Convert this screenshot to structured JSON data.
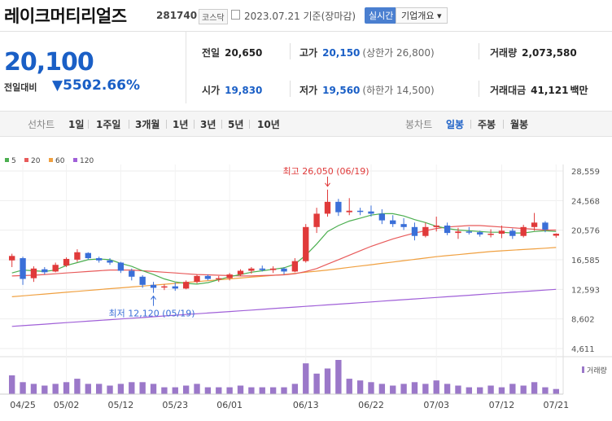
{
  "header": {
    "name": "레이크머티리얼즈",
    "code": "281740",
    "market": "코스닥",
    "date": "2023.07.21 기준(장마감)",
    "realtime_label": "실시간",
    "info_label": "기업개요 ▾"
  },
  "quote": {
    "price": "20,100",
    "change_label": "전일대비",
    "change": "▼550",
    "change_pct": "-2.66%",
    "prev_label": "전일",
    "prev": "20,650",
    "high_label": "고가",
    "high": "20,150",
    "upper_limit": "(상한가 26,800)",
    "volume_label": "거래량",
    "volume": "2,073,580",
    "open_label": "시가",
    "open": "19,830",
    "low_label": "저가",
    "low": "19,560",
    "lower_limit": "(하한가 14,500)",
    "value_label": "거래대금",
    "value": "41,121",
    "value_unit": "백만"
  },
  "tabs": {
    "line_chart": "선차트",
    "periods": [
      "1일",
      "1주일",
      "3개월",
      "1년",
      "3년",
      "5년",
      "10년"
    ],
    "candle_chart": "봉차트",
    "candle_periods": [
      "일봉",
      "주봉",
      "월봉"
    ]
  },
  "colors": {
    "up": "#e03a3a",
    "down": "#3a6fd8",
    "ma5": "#4caf50",
    "ma20": "#e85b5b",
    "ma60": "#f0a040",
    "ma120": "#a060d8"
  },
  "chart_data": {
    "type": "candlestick",
    "legend": [
      "5",
      "20",
      "60",
      "120"
    ],
    "ylim": [
      4611,
      28559
    ],
    "yticks": [
      "28,559",
      "24,568",
      "20,576",
      "16,585",
      "12,593",
      "8,602",
      "4,611"
    ],
    "xticks": [
      "04/25",
      "05/02",
      "05/12",
      "05/23",
      "06/01",
      "06/13",
      "06/22",
      "07/03",
      "07/12",
      "07/21"
    ],
    "xtick_index": [
      1,
      5,
      10,
      15,
      20,
      27,
      33,
      39,
      45,
      50
    ],
    "annotations": {
      "high": "최고 26,050 (06/19)",
      "low": "최저 12,120 (05/19)",
      "high_index": 29,
      "high_value": 26050,
      "low_index": 13,
      "low_value": 12120
    },
    "volume_label": "거래량",
    "ohlc": [
      [
        16500,
        17400,
        15600,
        17100
      ],
      [
        16800,
        17000,
        13200,
        14000
      ],
      [
        14100,
        15700,
        13600,
        15400
      ],
      [
        15300,
        15600,
        14600,
        14900
      ],
      [
        15000,
        16200,
        14900,
        15900
      ],
      [
        15800,
        16900,
        15600,
        16700
      ],
      [
        16600,
        18000,
        16300,
        17600
      ],
      [
        17500,
        17600,
        16600,
        16800
      ],
      [
        16800,
        17000,
        16200,
        16500
      ],
      [
        16500,
        16800,
        15900,
        16200
      ],
      [
        16200,
        16300,
        14800,
        15100
      ],
      [
        15100,
        15400,
        13800,
        14300
      ],
      [
        14300,
        14500,
        12800,
        13200
      ],
      [
        13200,
        13600,
        12120,
        12800
      ],
      [
        12900,
        13300,
        12500,
        13000
      ],
      [
        13000,
        13500,
        12400,
        12700
      ],
      [
        12700,
        13800,
        12600,
        13600
      ],
      [
        13600,
        14600,
        13400,
        14400
      ],
      [
        14400,
        14600,
        13800,
        14000
      ],
      [
        14000,
        14400,
        13600,
        14100
      ],
      [
        14100,
        14800,
        13800,
        14600
      ],
      [
        14600,
        15300,
        14400,
        15100
      ],
      [
        15100,
        15600,
        14700,
        15400
      ],
      [
        15400,
        15800,
        15000,
        15200
      ],
      [
        15200,
        15700,
        14800,
        15400
      ],
      [
        15400,
        15600,
        14600,
        15000
      ],
      [
        15000,
        16800,
        14900,
        16400
      ],
      [
        16400,
        21400,
        16200,
        21000
      ],
      [
        21000,
        23600,
        20200,
        22800
      ],
      [
        22800,
        26050,
        22400,
        24400
      ],
      [
        24400,
        24800,
        22500,
        23000
      ],
      [
        23000,
        24900,
        22600,
        23200
      ],
      [
        23200,
        23600,
        22600,
        23100
      ],
      [
        23100,
        23900,
        22400,
        22800
      ],
      [
        22800,
        23400,
        21400,
        21900
      ],
      [
        21900,
        22600,
        21000,
        21400
      ],
      [
        21400,
        22200,
        20600,
        21000
      ],
      [
        21000,
        21600,
        19200,
        19800
      ],
      [
        19800,
        21600,
        19600,
        21000
      ],
      [
        21000,
        22400,
        20400,
        21200
      ],
      [
        21200,
        21600,
        19900,
        20200
      ],
      [
        20200,
        20900,
        19400,
        20400
      ],
      [
        20400,
        21000,
        20000,
        20300
      ],
      [
        20300,
        20500,
        19700,
        20000
      ],
      [
        20000,
        20700,
        19600,
        20100
      ],
      [
        20100,
        21200,
        19500,
        20500
      ],
      [
        20500,
        20800,
        19400,
        19800
      ],
      [
        19800,
        21300,
        19600,
        21000
      ],
      [
        21000,
        22900,
        20500,
        21600
      ],
      [
        21600,
        21800,
        20300,
        20650
      ],
      [
        19830,
        20150,
        19560,
        20100
      ]
    ],
    "ma5": [
      14800,
      15200,
      15100,
      15000,
      15200,
      15800,
      16200,
      16600,
      16700,
      16600,
      16100,
      15700,
      15100,
      14600,
      14000,
      13600,
      13400,
      13300,
      13500,
      13900,
      14300,
      14600,
      14900,
      15100,
      15300,
      15500,
      16000,
      17200,
      18700,
      20400,
      21200,
      21800,
      22200,
      22600,
      22800,
      22800,
      22500,
      22000,
      21600,
      21100,
      20800,
      20600,
      20500,
      20400,
      20300,
      20300,
      20200,
      20200,
      20400,
      20500,
      20400
    ],
    "ma20": [
      14400,
      14450,
      14500,
      14600,
      14700,
      14800,
      14900,
      15000,
      15100,
      15200,
      15200,
      15200,
      15100,
      15000,
      14900,
      14800,
      14700,
      14600,
      14550,
      14500,
      14450,
      14400,
      14400,
      14450,
      14500,
      14550,
      14700,
      15000,
      15400,
      16000,
      16600,
      17200,
      17800,
      18400,
      18900,
      19400,
      19800,
      20200,
      20500,
      20800,
      21000,
      21100,
      21200,
      21200,
      21100,
      21000,
      20900,
      20800,
      20700,
      20600,
      20600
    ],
    "ma60": [
      11600,
      11720,
      11840,
      11960,
      12080,
      12200,
      12320,
      12440,
      12560,
      12680,
      12800,
      12920,
      13040,
      13160,
      13280,
      13400,
      13520,
      13640,
      13760,
      13880,
      14000,
      14120,
      14240,
      14360,
      14480,
      14600,
      14750,
      14900,
      15050,
      15200,
      15380,
      15560,
      15740,
      15920,
      16100,
      16280,
      16460,
      16640,
      16820,
      17000,
      17140,
      17280,
      17420,
      17560,
      17700,
      17790,
      17880,
      17970,
      18060,
      18150,
      18240
    ],
    "ma120": [
      7600,
      7700,
      7800,
      7900,
      8000,
      8100,
      8200,
      8300,
      8400,
      8500,
      8600,
      8700,
      8800,
      8900,
      9000,
      9100,
      9200,
      9300,
      9400,
      9500,
      9600,
      9700,
      9800,
      9900,
      10000,
      10100,
      10200,
      10300,
      10400,
      10500,
      10600,
      10700,
      10800,
      10900,
      11000,
      11100,
      11200,
      11300,
      11400,
      11500,
      11600,
      11700,
      11800,
      11900,
      12000,
      12100,
      12200,
      12300,
      12400,
      12500,
      12600
    ],
    "volume": [
      0.55,
      0.35,
      0.3,
      0.25,
      0.3,
      0.35,
      0.45,
      0.3,
      0.3,
      0.25,
      0.3,
      0.35,
      0.35,
      0.3,
      0.2,
      0.2,
      0.25,
      0.3,
      0.2,
      0.2,
      0.2,
      0.25,
      0.2,
      0.2,
      0.2,
      0.2,
      0.3,
      0.9,
      0.6,
      0.75,
      1.0,
      0.45,
      0.4,
      0.35,
      0.3,
      0.25,
      0.3,
      0.35,
      0.3,
      0.4,
      0.3,
      0.25,
      0.2,
      0.2,
      0.25,
      0.2,
      0.3,
      0.25,
      0.35,
      0.2,
      0.15
    ]
  }
}
